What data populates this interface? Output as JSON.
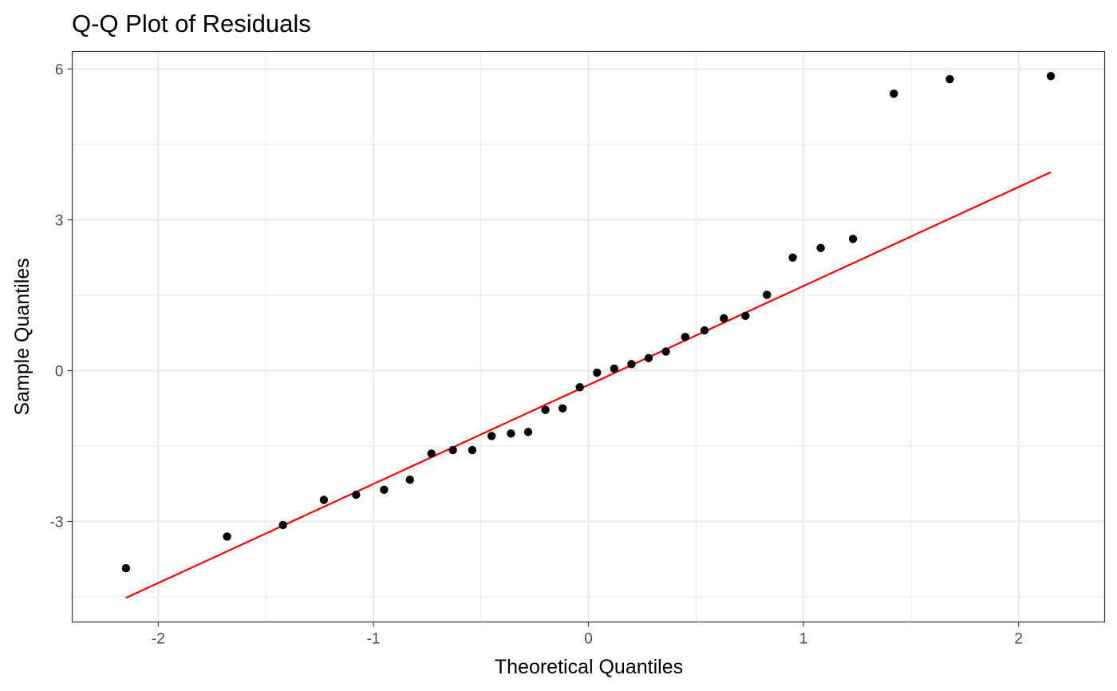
{
  "chart_data": {
    "type": "scatter",
    "title": "Q-Q Plot of Residuals",
    "xlabel": "Theoretical Quantiles",
    "ylabel": "Sample Quantiles",
    "xlim": [
      -2.4,
      2.4
    ],
    "ylim": [
      -5.0,
      6.35
    ],
    "xticks": [
      -2,
      -1,
      0,
      1,
      2
    ],
    "xtick_labels": [
      "-2",
      "-1",
      "0",
      "1",
      "2"
    ],
    "yticks": [
      -3,
      0,
      3,
      6
    ],
    "ytick_labels": [
      "-3",
      "0",
      "3",
      "6"
    ],
    "grid": true,
    "theme": "bw",
    "point_color": "#000000",
    "line_color": "#ff0000",
    "points": [
      {
        "x": -2.15,
        "y": -3.93
      },
      {
        "x": -1.68,
        "y": -3.3
      },
      {
        "x": -1.42,
        "y": -3.07
      },
      {
        "x": -1.23,
        "y": -2.57
      },
      {
        "x": -1.08,
        "y": -2.47
      },
      {
        "x": -0.95,
        "y": -2.37
      },
      {
        "x": -0.83,
        "y": -2.17
      },
      {
        "x": -0.73,
        "y": -1.65
      },
      {
        "x": -0.63,
        "y": -1.58
      },
      {
        "x": -0.54,
        "y": -1.58
      },
      {
        "x": -0.45,
        "y": -1.3
      },
      {
        "x": -0.36,
        "y": -1.25
      },
      {
        "x": -0.28,
        "y": -1.22
      },
      {
        "x": -0.2,
        "y": -0.78
      },
      {
        "x": -0.12,
        "y": -0.75
      },
      {
        "x": -0.04,
        "y": -0.33
      },
      {
        "x": 0.04,
        "y": -0.04
      },
      {
        "x": 0.12,
        "y": 0.04
      },
      {
        "x": 0.2,
        "y": 0.13
      },
      {
        "x": 0.28,
        "y": 0.25
      },
      {
        "x": 0.36,
        "y": 0.38
      },
      {
        "x": 0.45,
        "y": 0.67
      },
      {
        "x": 0.54,
        "y": 0.8
      },
      {
        "x": 0.63,
        "y": 1.04
      },
      {
        "x": 0.73,
        "y": 1.09
      },
      {
        "x": 0.83,
        "y": 1.51
      },
      {
        "x": 0.95,
        "y": 2.25
      },
      {
        "x": 1.08,
        "y": 2.44
      },
      {
        "x": 1.23,
        "y": 2.62
      },
      {
        "x": 1.42,
        "y": 5.51
      },
      {
        "x": 1.68,
        "y": 5.8
      },
      {
        "x": 2.15,
        "y": 5.86
      }
    ],
    "reference_line": {
      "x": [
        -2.15,
        2.15
      ],
      "y": [
        -4.52,
        3.95
      ]
    }
  }
}
